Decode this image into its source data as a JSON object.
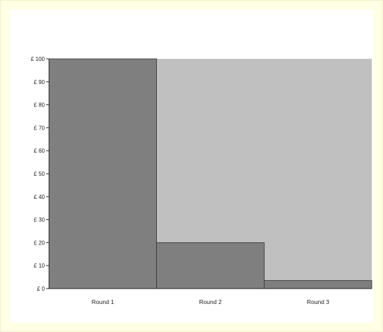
{
  "chart_data": {
    "type": "bar",
    "categories": [
      "Round 1",
      "Round 2",
      "Round 3"
    ],
    "values": [
      100,
      20,
      3.5
    ],
    "ylim": [
      0,
      100
    ],
    "yticks": [
      "£ 0",
      "£ 10",
      "£ 20",
      "£ 30",
      "£ 40",
      "£ 50",
      "£ 60",
      "£ 70",
      "£ 80",
      "£ 90",
      "£ 100"
    ],
    "grid": false,
    "legend": "none",
    "colors": {
      "bar": "#7f7f7f",
      "plot_background": "#c0c0c0",
      "page_background": "#ffffe6",
      "axis": "#222222"
    }
  }
}
